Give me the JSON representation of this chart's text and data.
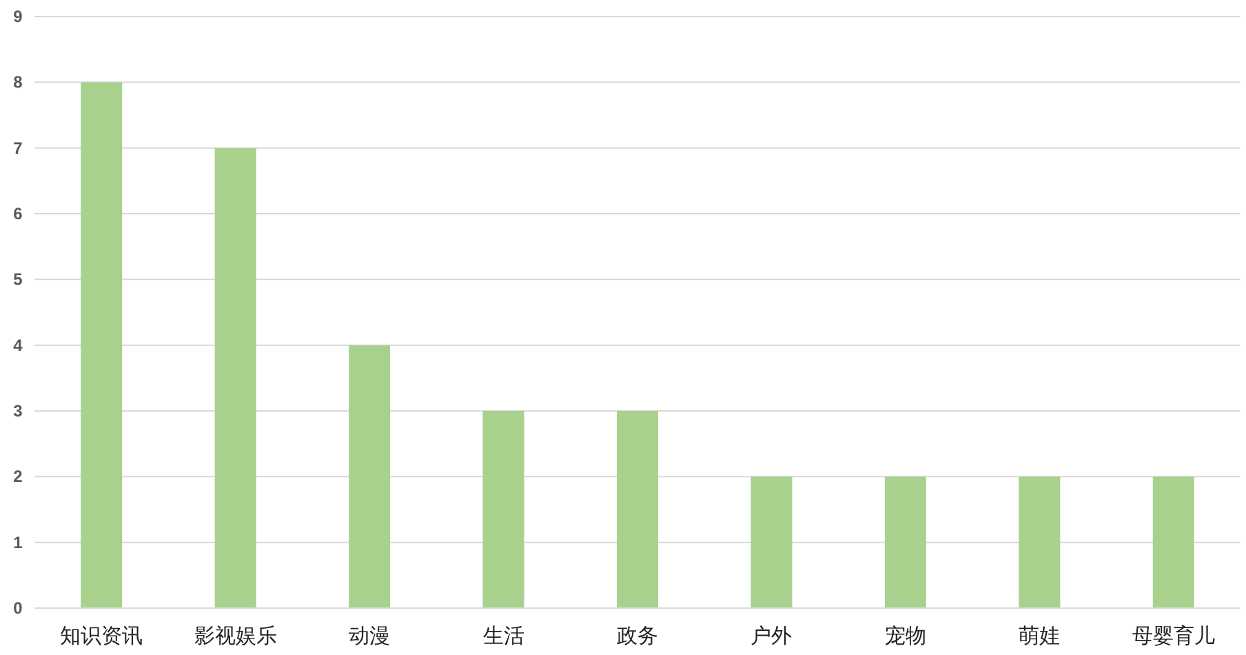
{
  "chart_data": {
    "type": "bar",
    "categories": [
      "知识资讯",
      "影视娱乐",
      "动漫",
      "生活",
      "政务",
      "户外",
      "宠物",
      "萌娃",
      "母婴育儿"
    ],
    "values": [
      8,
      7,
      4,
      3,
      3,
      2,
      2,
      2,
      2
    ],
    "color": "#a9d18e",
    "ylim": [
      0,
      9
    ],
    "yticks": [
      0,
      1,
      2,
      3,
      4,
      5,
      6,
      7,
      8,
      9
    ],
    "grid": "y"
  }
}
